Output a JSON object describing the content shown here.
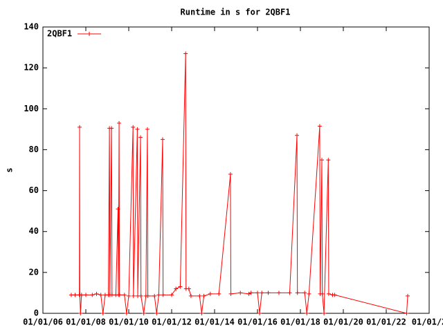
{
  "chart_data": {
    "type": "line",
    "title": "Runtime in s for 2QBF1",
    "y_label": "s",
    "legend": "top-left",
    "xlim": [
      2006,
      2024
    ],
    "xticks": [
      {
        "value": 2006,
        "label": "01/01/06"
      },
      {
        "value": 2008,
        "label": "01/01/08"
      },
      {
        "value": 2010,
        "label": "01/01/10"
      },
      {
        "value": 2012,
        "label": "01/01/12"
      },
      {
        "value": 2014,
        "label": "01/01/14"
      },
      {
        "value": 2016,
        "label": "01/01/16"
      },
      {
        "value": 2018,
        "label": "01/01/18"
      },
      {
        "value": 2020,
        "label": "01/01/20"
      },
      {
        "value": 2022,
        "label": "01/01/22"
      },
      {
        "value": 2024,
        "label": "01/01/2"
      }
    ],
    "ylim": [
      0,
      140
    ],
    "yticks": [
      0,
      20,
      40,
      60,
      80,
      100,
      120,
      140
    ],
    "x": [
      2007.32,
      2007.5,
      2007.7,
      2007.71,
      2007.72,
      2007.75,
      2007.8,
      2008.0,
      2008.3,
      2008.5,
      2008.7,
      2008.8,
      2008.9,
      2009.05,
      2009.1,
      2009.12,
      2009.2,
      2009.22,
      2009.4,
      2009.5,
      2009.52,
      2009.55,
      2009.57,
      2009.8,
      2009.9,
      2010.0,
      2010.2,
      2010.22,
      2010.4,
      2010.42,
      2010.55,
      2010.57,
      2010.7,
      2010.8,
      2010.87,
      2010.89,
      2011.2,
      2011.3,
      2011.4,
      2011.58,
      2011.6,
      2012.0,
      2012.2,
      2012.4,
      2012.65,
      2012.67,
      2012.8,
      2012.9,
      2013.3,
      2013.4,
      2013.5,
      2013.8,
      2014.2,
      2014.74,
      2014.76,
      2015.2,
      2015.6,
      2015.7,
      2016.0,
      2016.1,
      2016.2,
      2016.5,
      2017.0,
      2017.5,
      2017.84,
      2017.86,
      2018.2,
      2018.3,
      2018.4,
      2018.9,
      2018.92,
      2019.0,
      2019.02,
      2019.1,
      2019.3,
      2019.32,
      2019.5,
      2019.6,
      2022.95,
      2023.0
    ],
    "series": [
      {
        "name": "2QBF1",
        "color": "#ff0000",
        "values": [
          9,
          9,
          9,
          91,
          9,
          0,
          9,
          9,
          9,
          9.5,
          9,
          0,
          9,
          9,
          90.5,
          9,
          90.5,
          9,
          9,
          51,
          9,
          93,
          9,
          9,
          0,
          8.5,
          91,
          8.5,
          90,
          8.5,
          86,
          8.5,
          0,
          8.5,
          90,
          8.5,
          8.5,
          0,
          9,
          85,
          9,
          9,
          12,
          13,
          127,
          12,
          12,
          8.5,
          8.5,
          0,
          8.5,
          9.5,
          9.5,
          68,
          9.5,
          10,
          9.5,
          10,
          10,
          0,
          10,
          10,
          10,
          10,
          87,
          10,
          10,
          0,
          9.5,
          91.5,
          9.5,
          75,
          9.5,
          0,
          75,
          9.5,
          9,
          9,
          0,
          8.5
        ]
      }
    ]
  }
}
